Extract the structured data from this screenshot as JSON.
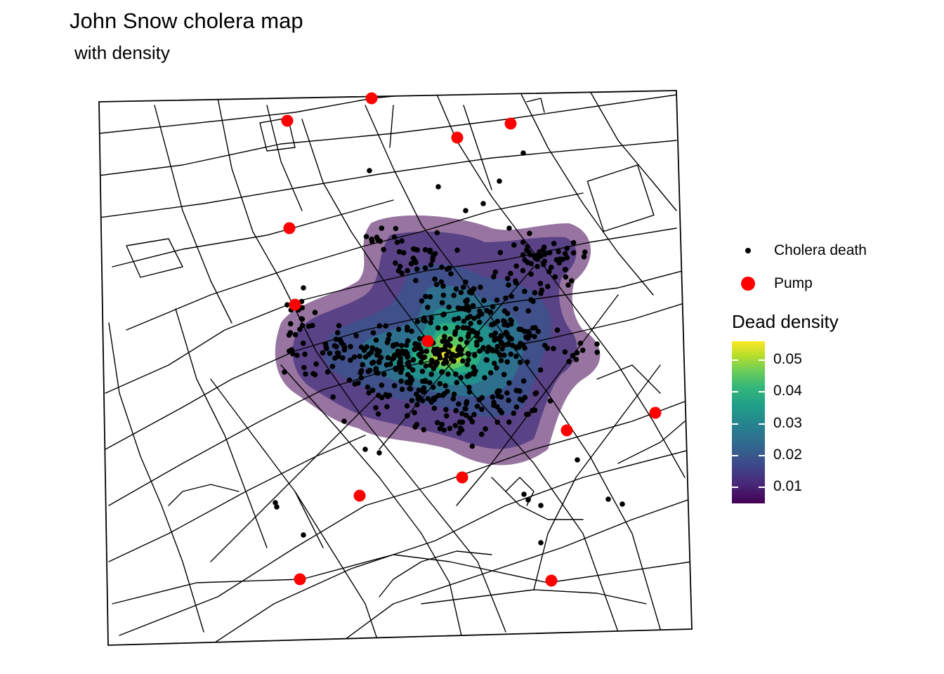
{
  "title": "John Snow cholera map",
  "subtitle": "with density",
  "legend": {
    "death_label": "Cholera death",
    "pump_label": "Pump",
    "density_title": "Dead density",
    "density_breaks": [
      "0.05",
      "0.04",
      "0.03",
      "0.02",
      "0.01"
    ],
    "density_values": [
      0.05,
      0.04,
      0.03,
      0.02,
      0.01
    ],
    "density_range": [
      0.005,
      0.056
    ],
    "palette": "viridis"
  },
  "colors": {
    "death": "#000000",
    "pump": "#ff0000",
    "street": "#000000",
    "background": "#ffffff"
  },
  "chart_data": {
    "type": "map",
    "pumps": 13,
    "deaths_shown": "approx. 580 points clustered around the Broad Street pump"
  }
}
